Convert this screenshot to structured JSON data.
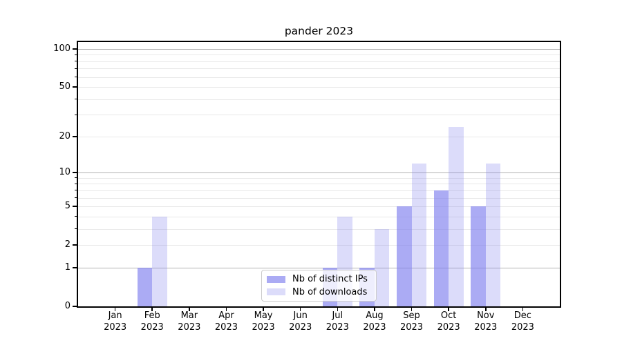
{
  "chart_data": {
    "type": "bar",
    "title": "pander 2023",
    "months": [
      "Jan",
      "Feb",
      "Mar",
      "Apr",
      "May",
      "Jun",
      "Jul",
      "Aug",
      "Sep",
      "Oct",
      "Nov",
      "Dec"
    ],
    "year": "2023",
    "series": [
      {
        "name": "Nb of distinct IPs",
        "values": [
          0,
          1,
          0,
          0,
          0,
          0,
          1,
          1,
          5,
          7,
          5,
          0
        ],
        "color": "rgba(128,128,238,0.66)"
      },
      {
        "name": "Nb of downloads",
        "values": [
          0,
          4,
          0,
          0,
          0,
          0,
          4,
          3,
          12,
          24,
          12,
          0
        ],
        "color": "rgba(128,128,238,0.28)"
      }
    ],
    "yscale": "log1p",
    "ylim": [
      0,
      113
    ],
    "yticks": [
      0,
      1,
      2,
      5,
      10,
      20,
      50,
      100
    ],
    "ytick_minor": [
      3,
      4,
      6,
      7,
      8,
      9,
      30,
      40,
      60,
      70,
      80,
      90
    ],
    "grid": {
      "major": [
        1,
        10,
        100
      ],
      "minor": [
        2,
        3,
        4,
        5,
        6,
        7,
        8,
        9,
        20,
        30,
        40,
        50,
        60,
        70,
        80,
        90
      ]
    },
    "legend_location": "lower center",
    "colors": {
      "grid_major": "#b0b0b0",
      "grid_minor": "#e8e8e8",
      "axis": "#000000",
      "text": "#000000",
      "legend_border": "#cccccc",
      "legend_bg": "rgba(255,255,255,0.8)"
    }
  }
}
